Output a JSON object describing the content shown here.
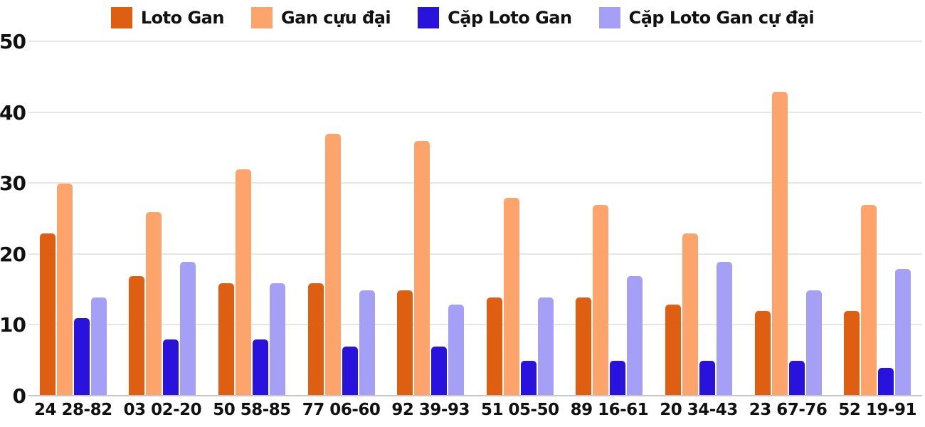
{
  "chart_data": {
    "type": "bar",
    "title": "",
    "xlabel": "",
    "ylabel": "",
    "ylim": [
      0,
      50
    ],
    "yticks": [
      0,
      10,
      20,
      30,
      40,
      50
    ],
    "grid": true,
    "legend_position": "top",
    "categories": [
      "24 28-82",
      "03 02-20",
      "50 58-85",
      "77 06-60",
      "92 39-93",
      "51 05-50",
      "89 16-61",
      "20 34-43",
      "23 67-76",
      "52 19-91"
    ],
    "series": [
      {
        "name": "Loto Gan",
        "slug": "loto-gan",
        "color": "#DE5E12",
        "values": [
          23,
          17,
          16,
          16,
          15,
          14,
          14,
          13,
          12,
          12
        ]
      },
      {
        "name": "Gan cựu đại",
        "slug": "gan-cuu-dai",
        "color": "#FCA46B",
        "values": [
          30,
          26,
          32,
          37,
          36,
          28,
          27,
          23,
          43,
          27
        ]
      },
      {
        "name": "Cặp Loto Gan",
        "slug": "cap-loto-gan",
        "color": "#2812DC",
        "values": [
          11,
          8,
          8,
          7,
          7,
          5,
          5,
          5,
          5,
          4
        ]
      },
      {
        "name": "Cặp Loto Gan cự đại",
        "slug": "cap-loto-gan-cu-dai",
        "color": "#A5A0F5",
        "values": [
          14,
          19,
          16,
          15,
          13,
          14,
          17,
          19,
          15,
          18
        ]
      }
    ]
  },
  "colors": {
    "background": "#FFFFFF",
    "gridline": "#E6E6E6",
    "axis_line": "#C6C6C6",
    "text": "#111111"
  }
}
